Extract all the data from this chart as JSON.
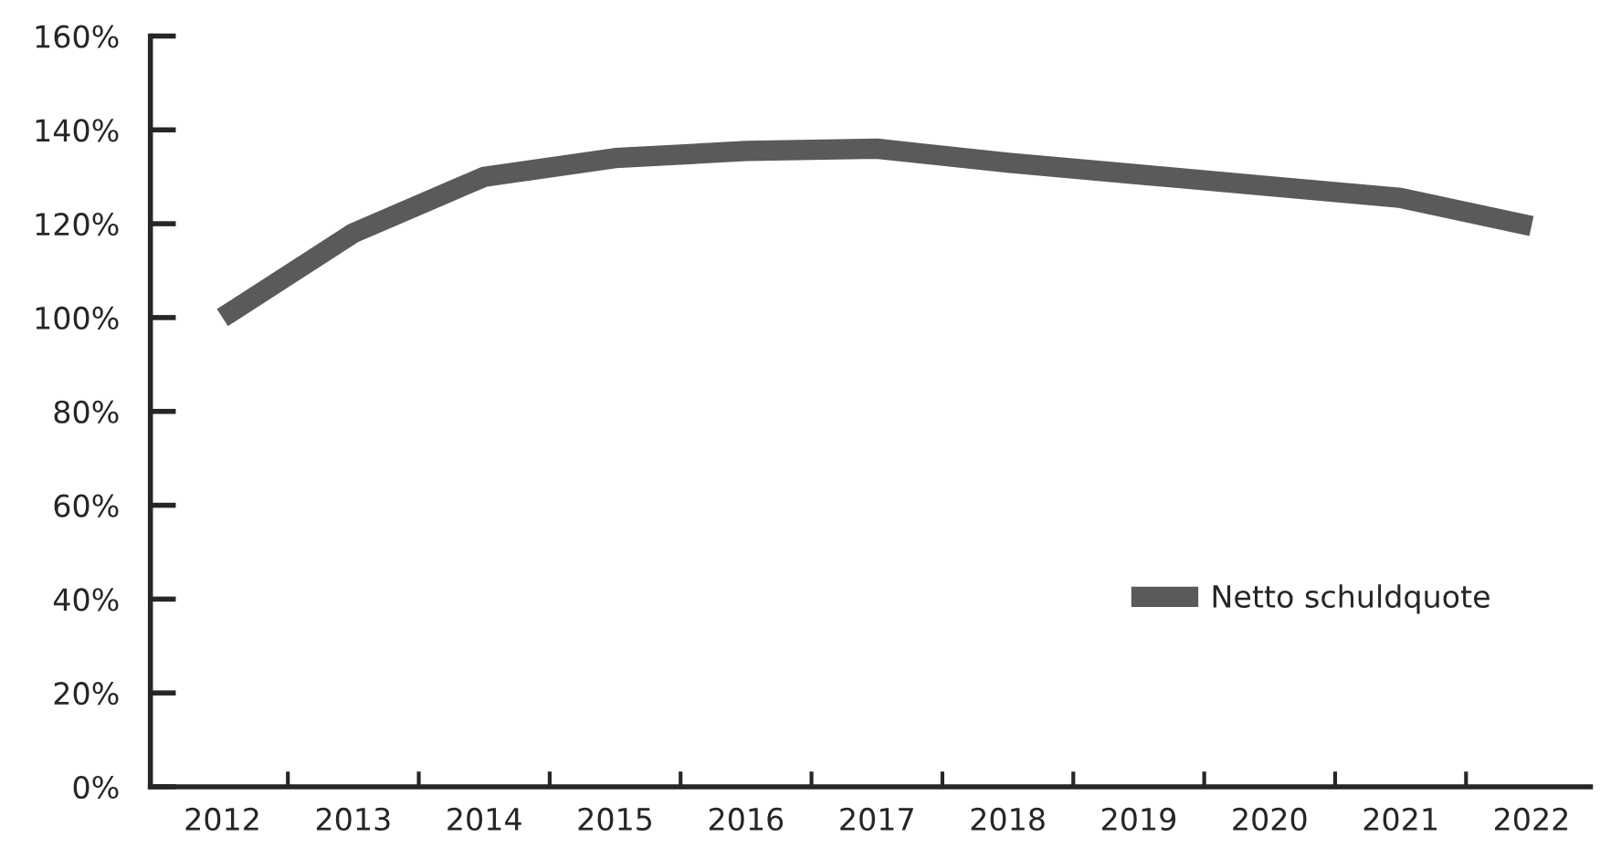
{
  "chart_data": {
    "type": "line",
    "categories": [
      "2012",
      "2013",
      "2014",
      "2015",
      "2016",
      "2017",
      "2018",
      "2019",
      "2020",
      "2021",
      "2022"
    ],
    "series": [
      {
        "name": "Netto schuldquote",
        "color": "#5a5a5a",
        "values": [
          100,
          118,
          130,
          134,
          135.5,
          136,
          133,
          130.5,
          128,
          125.5,
          119.5
        ]
      }
    ],
    "ylim": [
      0,
      160
    ],
    "yticks": [
      {
        "value": 0,
        "label": "0%"
      },
      {
        "value": 20,
        "label": "20%"
      },
      {
        "value": 40,
        "label": "40%"
      },
      {
        "value": 60,
        "label": "60%"
      },
      {
        "value": 80,
        "label": "80%"
      },
      {
        "value": 100,
        "label": "100%"
      },
      {
        "value": 120,
        "label": "120%"
      },
      {
        "value": 140,
        "label": "140%"
      },
      {
        "value": 160,
        "label": "160%"
      }
    ],
    "grid": false,
    "legend": "right",
    "marker": "none",
    "line_style": "solid"
  }
}
